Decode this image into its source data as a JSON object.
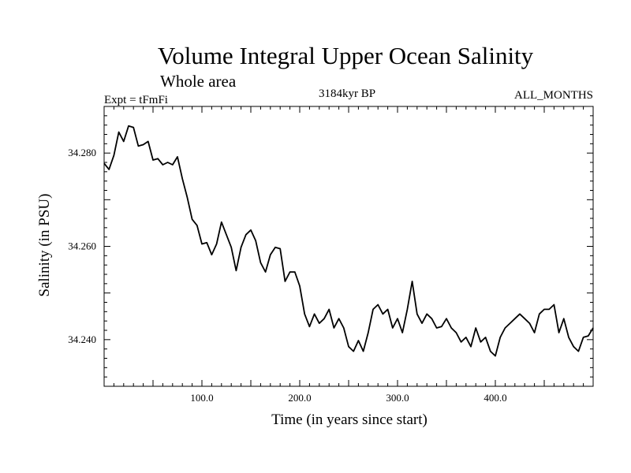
{
  "chart_data": {
    "type": "line",
    "title": "Volume Integral Upper Ocean Salinity",
    "subtitle": "Whole area",
    "experiment": "Expt = tFmFi",
    "period": "3184kyr BP",
    "months": "ALL_MONTHS",
    "xlabel": "Time (in years since start)",
    "ylabel": "Salinity (in PSU)",
    "xlim": [
      0,
      500
    ],
    "ylim": [
      34.23,
      34.29
    ],
    "x_major_ticks": [
      100,
      200,
      300,
      400
    ],
    "x_tick_labels": [
      "100.0",
      "200.0",
      "300.0",
      "400.0"
    ],
    "y_major_ticks": [
      34.24,
      34.26,
      34.28
    ],
    "y_tick_labels": [
      "34.240",
      "34.260",
      "34.280"
    ],
    "series": [
      {
        "name": "salinity",
        "x": [
          0,
          5,
          10,
          15,
          20,
          25,
          30,
          35,
          40,
          45,
          50,
          55,
          60,
          65,
          70,
          75,
          80,
          85,
          90,
          95,
          100,
          105,
          110,
          115,
          120,
          125,
          130,
          135,
          140,
          145,
          150,
          155,
          160,
          165,
          170,
          175,
          180,
          185,
          190,
          195,
          200,
          205,
          210,
          215,
          220,
          225,
          230,
          235,
          240,
          245,
          250,
          255,
          260,
          265,
          270,
          275,
          280,
          285,
          290,
          295,
          300,
          305,
          310,
          315,
          320,
          325,
          330,
          335,
          340,
          345,
          350,
          355,
          360,
          365,
          370,
          375,
          380,
          385,
          390,
          395,
          400,
          405,
          410,
          415,
          420,
          425,
          430,
          435,
          440,
          445,
          450,
          455,
          460,
          465,
          470,
          475,
          480,
          485,
          490,
          495,
          500
        ],
        "values": [
          34.2778,
          34.2765,
          34.2795,
          34.2845,
          34.2825,
          34.2858,
          34.2855,
          34.2815,
          34.2818,
          34.2825,
          34.2785,
          34.2788,
          34.2775,
          34.278,
          34.2775,
          34.2792,
          34.2745,
          34.2705,
          34.2658,
          34.2645,
          34.2605,
          34.2608,
          34.2582,
          34.2605,
          34.2652,
          34.2625,
          34.2598,
          34.2548,
          34.2598,
          34.2625,
          34.2635,
          34.2612,
          34.2565,
          34.2545,
          34.2582,
          34.2598,
          34.2595,
          34.2525,
          34.2545,
          34.2545,
          34.2515,
          34.2455,
          34.2428,
          34.2455,
          34.2435,
          34.2445,
          34.2465,
          34.2425,
          34.2445,
          34.2425,
          34.2385,
          34.2375,
          34.2398,
          34.2375,
          34.2415,
          34.2465,
          34.2475,
          34.2455,
          34.2465,
          34.2425,
          34.2445,
          34.2415,
          34.2465,
          34.2525,
          34.2455,
          34.2435,
          34.2455,
          34.2445,
          34.2425,
          34.2428,
          34.2445,
          34.2425,
          34.2415,
          34.2395,
          34.2405,
          34.2385,
          34.2425,
          34.2395,
          34.2405,
          34.2375,
          34.2365,
          34.2405,
          34.2425,
          34.2435,
          34.2445,
          34.2455,
          34.2445,
          34.2435,
          34.2415,
          34.2455,
          34.2465,
          34.2465,
          34.2475,
          34.2415,
          34.2445,
          34.2405,
          34.2385,
          34.2375,
          34.2405,
          34.2408,
          34.2425
        ]
      }
    ]
  }
}
